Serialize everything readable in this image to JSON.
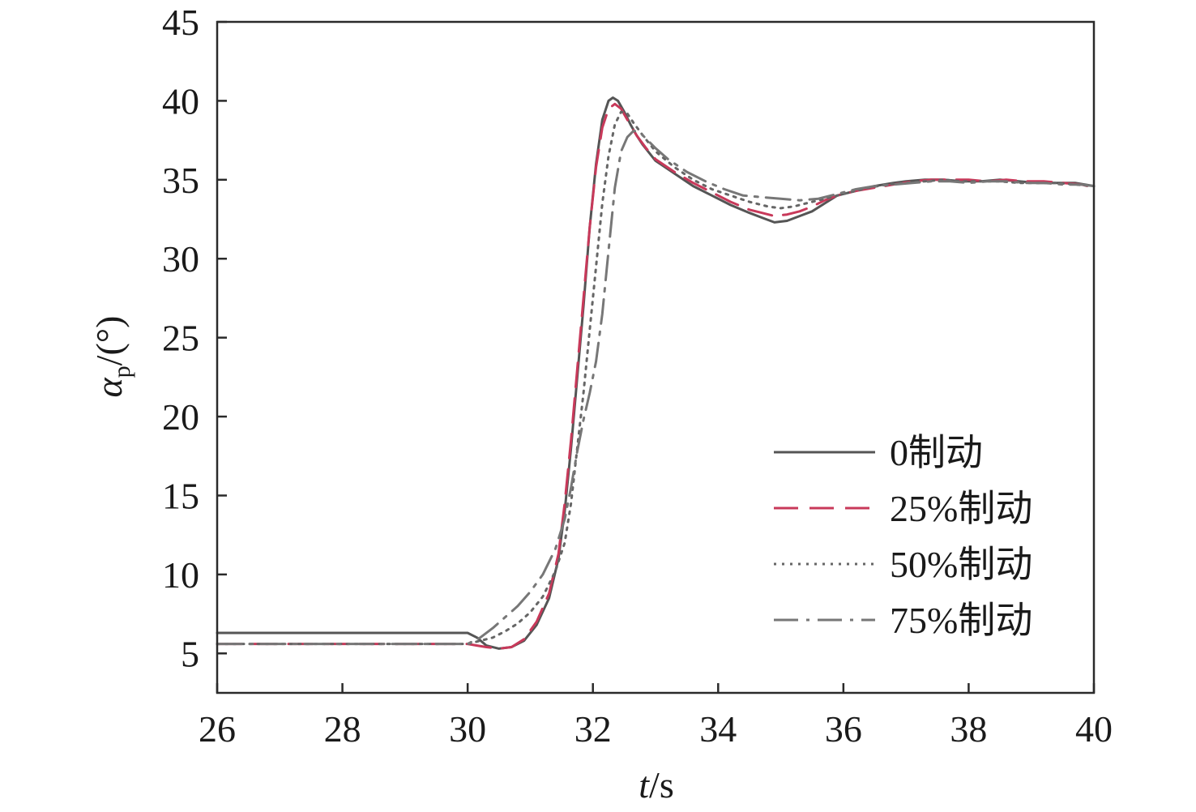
{
  "chart_data": {
    "type": "line",
    "x_ticks": [
      "26",
      "28",
      "30",
      "32",
      "34",
      "36",
      "38",
      "40"
    ],
    "y_ticks": [
      "5",
      "10",
      "15",
      "20",
      "25",
      "30",
      "35",
      "40",
      "45"
    ],
    "xlim": [
      26,
      40
    ],
    "ylim": [
      2.5,
      45
    ],
    "grid": false,
    "legend_position": "lower-right",
    "xlabel": {
      "italic": "t",
      "rest": "/s"
    },
    "ylabel": {
      "base": "α",
      "sub": "p",
      "rest": "/(°)"
    },
    "series": [
      {
        "name": "0制动",
        "color": "#555555",
        "dash": "none",
        "width": 3,
        "x": [
          26,
          30.0,
          30.15,
          30.3,
          30.5,
          30.7,
          30.9,
          31.1,
          31.3,
          31.45,
          31.55,
          31.65,
          31.75,
          31.85,
          31.95,
          32.05,
          32.15,
          32.25,
          32.32,
          32.4,
          32.5,
          32.6,
          32.7,
          32.8,
          33.0,
          33.3,
          33.6,
          33.9,
          34.2,
          34.5,
          34.7,
          34.9,
          35.1,
          35.3,
          35.5,
          35.7,
          35.9,
          36.2,
          36.5,
          36.8,
          37.0,
          37.3,
          37.6,
          37.9,
          38.2,
          38.5,
          38.8,
          39.1,
          39.4,
          39.7,
          40
        ],
        "y": [
          6.3,
          6.3,
          6.0,
          5.5,
          5.3,
          5.4,
          5.8,
          6.8,
          8.5,
          11,
          14,
          18,
          22.5,
          27,
          32,
          36,
          38.8,
          40.0,
          40.2,
          40.0,
          39.3,
          38.5,
          37.8,
          37.2,
          36.2,
          35.4,
          34.6,
          34.0,
          33.4,
          32.9,
          32.6,
          32.3,
          32.4,
          32.7,
          33.0,
          33.5,
          34.0,
          34.3,
          34.6,
          34.8,
          34.9,
          35.0,
          35.0,
          34.9,
          34.9,
          35.0,
          34.9,
          34.8,
          34.8,
          34.8,
          34.6
        ]
      },
      {
        "name": "25%制动",
        "color": "#c8395a",
        "dash": "30,14",
        "width": 3,
        "x": [
          26,
          30.0,
          30.15,
          30.3,
          30.5,
          30.7,
          30.9,
          31.1,
          31.3,
          31.45,
          31.55,
          31.65,
          31.75,
          31.85,
          31.95,
          32.05,
          32.15,
          32.25,
          32.35,
          32.45,
          32.55,
          32.7,
          32.85,
          33.0,
          33.3,
          33.6,
          33.9,
          34.2,
          34.5,
          34.7,
          34.9,
          35.1,
          35.3,
          35.5,
          35.7,
          35.9,
          36.2,
          36.5,
          36.8,
          37.1,
          37.4,
          37.7,
          38.0,
          38.3,
          38.6,
          38.9,
          39.2,
          39.5,
          39.8,
          40
        ],
        "y": [
          5.6,
          5.6,
          5.5,
          5.4,
          5.3,
          5.4,
          5.9,
          7.0,
          8.8,
          11.3,
          14.5,
          18.5,
          23,
          27.5,
          32,
          35.8,
          38.3,
          39.5,
          39.8,
          39.5,
          38.8,
          37.8,
          37.0,
          36.3,
          35.5,
          34.8,
          34.2,
          33.6,
          33.1,
          32.9,
          32.7,
          32.8,
          33.0,
          33.3,
          33.7,
          34.0,
          34.3,
          34.5,
          34.7,
          34.9,
          35.0,
          35.0,
          35.0,
          34.9,
          35.0,
          34.9,
          34.9,
          34.8,
          34.7,
          34.5
        ]
      },
      {
        "name": "50%制动",
        "color": "#666666",
        "dash": "3,7",
        "width": 3,
        "x": [
          26,
          30.0,
          30.2,
          30.4,
          30.6,
          30.8,
          31.0,
          31.2,
          31.4,
          31.55,
          31.65,
          31.75,
          31.85,
          31.95,
          32.05,
          32.15,
          32.25,
          32.35,
          32.45,
          32.55,
          32.65,
          32.8,
          33.0,
          33.3,
          33.6,
          33.9,
          34.2,
          34.5,
          34.8,
          35.0,
          35.2,
          35.5,
          35.8,
          36.1,
          36.4,
          36.7,
          37.0,
          37.3,
          37.6,
          37.9,
          38.2,
          38.5,
          38.8,
          39.1,
          39.4,
          39.7,
          40
        ],
        "y": [
          5.6,
          5.6,
          5.8,
          6.0,
          6.4,
          6.9,
          7.6,
          8.6,
          10.2,
          12,
          14.5,
          18,
          21.5,
          25.5,
          29.5,
          33.5,
          36.5,
          38.5,
          39.3,
          39.2,
          38.6,
          37.8,
          36.8,
          35.8,
          35.0,
          34.4,
          34.0,
          33.6,
          33.3,
          33.2,
          33.3,
          33.6,
          33.9,
          34.2,
          34.5,
          34.7,
          34.8,
          34.9,
          35.0,
          34.9,
          34.9,
          34.9,
          34.8,
          34.8,
          34.8,
          34.7,
          34.6
        ]
      },
      {
        "name": "75%制动",
        "color": "#777777",
        "dash": "30,10,4,10",
        "width": 3,
        "x": [
          26,
          30.0,
          30.2,
          30.4,
          30.6,
          30.8,
          31.0,
          31.2,
          31.4,
          31.55,
          31.65,
          31.75,
          31.85,
          31.95,
          32.05,
          32.15,
          32.25,
          32.35,
          32.45,
          32.55,
          32.65,
          32.75,
          32.85,
          33.0,
          33.2,
          33.5,
          33.8,
          34.1,
          34.4,
          34.7,
          35.0,
          35.3,
          35.6,
          35.9,
          36.2,
          36.5,
          36.8,
          37.1,
          37.4,
          37.7,
          38.0,
          38.3,
          38.6,
          38.9,
          39.2,
          39.5,
          39.8,
          40
        ],
        "y": [
          5.6,
          5.6,
          6.0,
          6.6,
          7.3,
          8.0,
          8.9,
          10.0,
          11.6,
          13.5,
          15.5,
          17.8,
          19.8,
          21.5,
          23.5,
          26.5,
          30.5,
          34.5,
          36.8,
          37.7,
          38.1,
          38.0,
          37.6,
          37.0,
          36.3,
          35.5,
          34.9,
          34.4,
          34.0,
          33.9,
          33.8,
          33.7,
          33.8,
          34.1,
          34.4,
          34.6,
          34.7,
          34.8,
          34.9,
          34.9,
          34.8,
          34.9,
          34.9,
          34.8,
          34.8,
          34.7,
          34.7,
          34.6
        ]
      }
    ]
  }
}
